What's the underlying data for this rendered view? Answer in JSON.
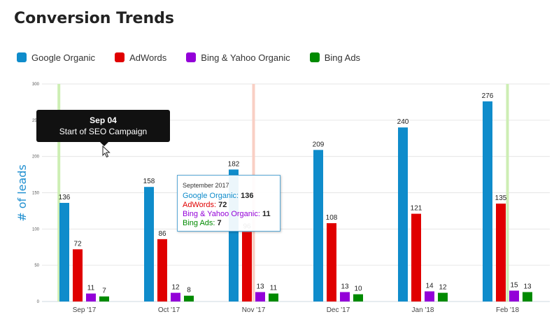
{
  "title": "Conversion Trends",
  "chart_data": {
    "type": "bar",
    "categories": [
      "Sep '17",
      "Oct '17",
      "Nov '17",
      "Dec '17",
      "Jan '18",
      "Feb '18"
    ],
    "series": [
      {
        "name": "Google Organic",
        "color": "#0f8ccb",
        "values": [
          136,
          158,
          182,
          209,
          240,
          276
        ]
      },
      {
        "name": "AdWords",
        "color": "#e00000",
        "values": [
          72,
          86,
          96,
          108,
          121,
          135
        ]
      },
      {
        "name": "Bing & Yahoo Organic",
        "color": "#9300d8",
        "values": [
          11,
          12,
          13,
          13,
          14,
          15
        ]
      },
      {
        "name": "Bing Ads",
        "color": "#008a00",
        "values": [
          7,
          8,
          11,
          10,
          12,
          13
        ]
      }
    ],
    "ylabel": "# of leads",
    "ylim": [
      0,
      300
    ],
    "yticks": [
      0,
      50,
      100,
      150,
      200,
      250,
      300
    ],
    "grid": true,
    "legend_position": "top-left",
    "plot_lines": [
      {
        "x": "Sep '17",
        "offset": 0.2,
        "color": "#cdeeb4"
      },
      {
        "x": "Nov '17",
        "offset": 0.5,
        "color": "#f9cfc4"
      },
      {
        "x": "Feb '18",
        "offset": 0.5,
        "color": "#cdeeb4"
      }
    ]
  },
  "annotation_tooltip": {
    "date": "Sep 04",
    "text": "Start of SEO Campaign"
  },
  "hover_tooltip": {
    "header": "September 2017",
    "rows": [
      {
        "label": "Google Organic",
        "value": "136",
        "color": "#0f8ccb"
      },
      {
        "label": "AdWords",
        "value": "72",
        "color": "#e00000"
      },
      {
        "label": "Bing & Yahoo Organic",
        "value": "11",
        "color": "#9300d8"
      },
      {
        "label": "Bing Ads",
        "value": "7",
        "color": "#008a00"
      }
    ]
  }
}
